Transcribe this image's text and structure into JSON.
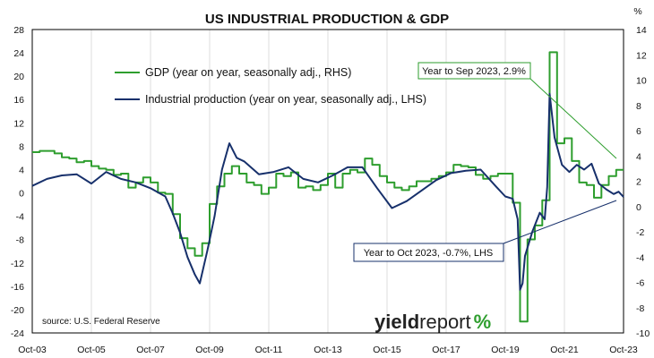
{
  "chart_data": {
    "type": "line",
    "title": "US INDUSTRIAL PRODUCTION & GDP",
    "right_axis_unit": "%",
    "x_tick_labels": [
      "Oct-03",
      "Oct-05",
      "Oct-07",
      "Oct-09",
      "Oct-11",
      "Oct-13",
      "Oct-15",
      "Oct-17",
      "Oct-19",
      "Oct-21",
      "Oct-23"
    ],
    "x_range": [
      "2003-10",
      "2023-10"
    ],
    "y_left": {
      "min": -24,
      "max": 28,
      "ticks": [
        28,
        24,
        20,
        16,
        12,
        8,
        4,
        0,
        -4,
        -8,
        -12,
        -16,
        -20,
        -24
      ]
    },
    "y_right": {
      "min": -10,
      "max": 14,
      "ticks": [
        14,
        12,
        10,
        8,
        6,
        4,
        2,
        0,
        -2,
        -4,
        -6,
        -8,
        -10
      ]
    },
    "grid": "vertical",
    "legend_position": "top-left",
    "series": [
      {
        "name": "GDP (year on year, seasonally adj., RHS)",
        "axis": "right",
        "color": "#2e9e2e",
        "step": true,
        "points": [
          [
            "2003-10",
            4.3
          ],
          [
            "2004-01",
            4.4
          ],
          [
            "2004-04",
            4.4
          ],
          [
            "2004-07",
            4.2
          ],
          [
            "2004-10",
            3.9
          ],
          [
            "2005-01",
            3.8
          ],
          [
            "2005-04",
            3.5
          ],
          [
            "2005-07",
            3.6
          ],
          [
            "2005-10",
            3.2
          ],
          [
            "2006-01",
            3.0
          ],
          [
            "2006-04",
            2.9
          ],
          [
            "2006-07",
            2.5
          ],
          [
            "2006-10",
            2.6
          ],
          [
            "2007-01",
            1.5
          ],
          [
            "2007-04",
            1.9
          ],
          [
            "2007-07",
            2.3
          ],
          [
            "2007-10",
            1.9
          ],
          [
            "2008-01",
            1.1
          ],
          [
            "2008-04",
            1.0
          ],
          [
            "2008-07",
            -0.6
          ],
          [
            "2008-10",
            -2.5
          ],
          [
            "2009-01",
            -3.3
          ],
          [
            "2009-04",
            -3.9
          ],
          [
            "2009-07",
            -2.9
          ],
          [
            "2009-10",
            0.2
          ],
          [
            "2010-01",
            1.6
          ],
          [
            "2010-04",
            2.6
          ],
          [
            "2010-07",
            3.2
          ],
          [
            "2010-10",
            2.6
          ],
          [
            "2011-01",
            1.9
          ],
          [
            "2011-04",
            1.7
          ],
          [
            "2011-07",
            1.0
          ],
          [
            "2011-10",
            1.5
          ],
          [
            "2012-01",
            2.6
          ],
          [
            "2012-04",
            2.4
          ],
          [
            "2012-07",
            2.7
          ],
          [
            "2012-10",
            1.5
          ],
          [
            "2013-01",
            1.6
          ],
          [
            "2013-04",
            1.3
          ],
          [
            "2013-07",
            1.7
          ],
          [
            "2013-10",
            2.6
          ],
          [
            "2014-01",
            1.5
          ],
          [
            "2014-04",
            2.6
          ],
          [
            "2014-07",
            2.9
          ],
          [
            "2014-10",
            2.7
          ],
          [
            "2015-01",
            3.8
          ],
          [
            "2015-04",
            3.3
          ],
          [
            "2015-07",
            2.4
          ],
          [
            "2015-10",
            1.9
          ],
          [
            "2016-01",
            1.5
          ],
          [
            "2016-04",
            1.3
          ],
          [
            "2016-07",
            1.6
          ],
          [
            "2016-10",
            2.0
          ],
          [
            "2017-01",
            2.0
          ],
          [
            "2017-04",
            2.2
          ],
          [
            "2017-07",
            2.4
          ],
          [
            "2017-10",
            2.7
          ],
          [
            "2018-01",
            3.3
          ],
          [
            "2018-04",
            3.2
          ],
          [
            "2018-07",
            3.1
          ],
          [
            "2018-10",
            2.5
          ],
          [
            "2019-01",
            2.2
          ],
          [
            "2019-04",
            2.4
          ],
          [
            "2019-07",
            2.6
          ],
          [
            "2019-10",
            2.6
          ],
          [
            "2020-01",
            0.3
          ],
          [
            "2020-04",
            -9.1
          ],
          [
            "2020-07",
            -2.6
          ],
          [
            "2020-10",
            -1.5
          ],
          [
            "2021-01",
            0.5
          ],
          [
            "2021-04",
            12.2
          ],
          [
            "2021-07",
            5.0
          ],
          [
            "2021-10",
            5.4
          ],
          [
            "2022-01",
            3.6
          ],
          [
            "2022-04",
            1.9
          ],
          [
            "2022-07",
            1.7
          ],
          [
            "2022-10",
            0.7
          ],
          [
            "2023-01",
            1.7
          ],
          [
            "2023-04",
            2.4
          ],
          [
            "2023-07",
            2.9
          ],
          [
            "2023-10",
            2.9
          ]
        ]
      },
      {
        "name": "Industrial production (year on year, seasonally adj., LHS)",
        "axis": "left",
        "color": "#17306b",
        "step": false,
        "points": [
          [
            "2003-10",
            1.2
          ],
          [
            "2004-04",
            2.4
          ],
          [
            "2004-10",
            3.0
          ],
          [
            "2005-04",
            3.2
          ],
          [
            "2005-10",
            1.6
          ],
          [
            "2006-04",
            3.6
          ],
          [
            "2006-10",
            2.4
          ],
          [
            "2007-04",
            1.8
          ],
          [
            "2007-10",
            0.8
          ],
          [
            "2008-04",
            -0.6
          ],
          [
            "2008-07",
            -3.5
          ],
          [
            "2008-10",
            -6.8
          ],
          [
            "2009-01",
            -11.0
          ],
          [
            "2009-04",
            -14.0
          ],
          [
            "2009-06",
            -15.5
          ],
          [
            "2009-09",
            -10.0
          ],
          [
            "2009-12",
            -4.0
          ],
          [
            "2010-03",
            4.0
          ],
          [
            "2010-06",
            8.5
          ],
          [
            "2010-09",
            6.0
          ],
          [
            "2010-12",
            5.4
          ],
          [
            "2011-06",
            3.2
          ],
          [
            "2011-12",
            3.6
          ],
          [
            "2012-06",
            4.4
          ],
          [
            "2012-12",
            2.4
          ],
          [
            "2013-06",
            1.8
          ],
          [
            "2013-12",
            3.0
          ],
          [
            "2014-06",
            4.4
          ],
          [
            "2014-12",
            4.4
          ],
          [
            "2015-06",
            0.8
          ],
          [
            "2015-12",
            -2.6
          ],
          [
            "2016-06",
            -1.4
          ],
          [
            "2016-12",
            0.4
          ],
          [
            "2017-06",
            2.2
          ],
          [
            "2017-12",
            3.4
          ],
          [
            "2018-06",
            3.8
          ],
          [
            "2018-12",
            4.0
          ],
          [
            "2019-06",
            1.2
          ],
          [
            "2019-10",
            -0.6
          ],
          [
            "2020-01",
            -1.0
          ],
          [
            "2020-03",
            -4.5
          ],
          [
            "2020-04",
            -16.6
          ],
          [
            "2020-05",
            -15.5
          ],
          [
            "2020-06",
            -10.8
          ],
          [
            "2020-09",
            -6.6
          ],
          [
            "2020-12",
            -3.4
          ],
          [
            "2021-02",
            -4.5
          ],
          [
            "2021-03",
            1.0
          ],
          [
            "2021-04",
            17.0
          ],
          [
            "2021-06",
            9.5
          ],
          [
            "2021-09",
            4.8
          ],
          [
            "2021-12",
            3.6
          ],
          [
            "2022-03",
            4.8
          ],
          [
            "2022-06",
            4.0
          ],
          [
            "2022-09",
            5.0
          ],
          [
            "2022-12",
            1.6
          ],
          [
            "2023-03",
            0.6
          ],
          [
            "2023-06",
            -0.2
          ],
          [
            "2023-08",
            0.2
          ],
          [
            "2023-10",
            -0.7
          ]
        ]
      }
    ],
    "annotations": [
      {
        "text": "Year to Sep 2023, 2.9%",
        "series": "GDP (year on year, seasonally adj., RHS)"
      },
      {
        "text": "Year to Oct 2023, -0.7%, LHS",
        "series": "Industrial production (year on year, seasonally adj., LHS)"
      }
    ],
    "source": "source: U.S. Federal Reserve"
  },
  "logo": {
    "part1": "yield",
    "part2": "report",
    "part3": "%"
  }
}
